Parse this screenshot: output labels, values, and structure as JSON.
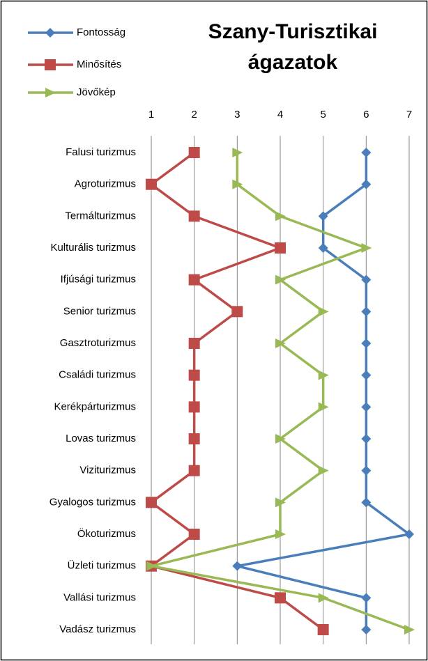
{
  "chart_data": {
    "type": "line",
    "orientation": "horizontal",
    "title": "Szany-Turisztikai ágazatok",
    "categories": [
      "Falusi turizmus",
      "Agroturizmus",
      "Termálturizmus",
      "Kulturális turizmus",
      "Ifjúsági turizmus",
      "Senior turizmus",
      "Gasztroturizmus",
      "Családi turizmus",
      "Kerékpárturizmus",
      "Lovas turizmus",
      "Viziturizmus",
      "Gyalogos turizmus",
      "Ökoturizmus",
      "Üzleti turizmus",
      "Vallási turizmus",
      "Vadász turizmus"
    ],
    "series": [
      {
        "name": "Fontosság",
        "color": "#4a7ebb",
        "marker": "diamond",
        "values": [
          6,
          6,
          5,
          5,
          6,
          6,
          6,
          6,
          6,
          6,
          6,
          6,
          7,
          3,
          6,
          6
        ]
      },
      {
        "name": "Minősítés",
        "color": "#be4b48",
        "marker": "square",
        "values": [
          2,
          1,
          2,
          4,
          2,
          3,
          2,
          2,
          2,
          2,
          2,
          1,
          2,
          1,
          4,
          5
        ]
      },
      {
        "name": "Jövőkép",
        "color": "#98b954",
        "marker": "triangle",
        "values": [
          3,
          3,
          4,
          6,
          4,
          5,
          4,
          5,
          5,
          4,
          5,
          4,
          4,
          1,
          5,
          7
        ]
      }
    ],
    "xlim": [
      1,
      7
    ],
    "xticks": [
      1,
      2,
      3,
      4,
      5,
      6,
      7
    ],
    "grid": true,
    "legend": "top-left"
  }
}
